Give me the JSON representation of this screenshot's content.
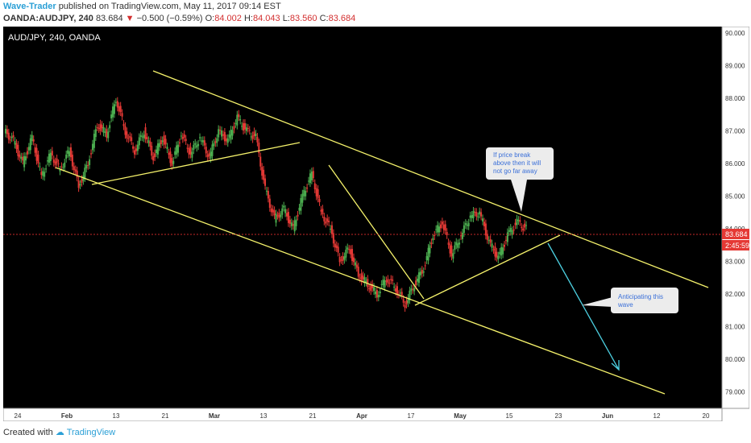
{
  "header": {
    "author": "Wave-Trader",
    "published_text": "published on TradingView.com, May 11, 2017 09:14 EST",
    "symbol": "OANDA:AUDJPY, 240",
    "last": "83.684",
    "change": "−0.500 (−0.59%)",
    "o_label": "O:",
    "o_value": "84.002",
    "h_label": "H:",
    "h_value": "84.043",
    "l_label": "L:",
    "l_value": "83.560",
    "c_label": "C:",
    "c_value": "83.684"
  },
  "footer": {
    "created_with": "Created with",
    "brand": "TradingView"
  },
  "chart_data": {
    "type": "line",
    "title": "AUD/JPY, 240, OANDA",
    "ylim": [
      78.5,
      90.2
    ],
    "y_ticks": [
      "90.000",
      "89.000",
      "88.000",
      "87.000",
      "86.000",
      "85.000",
      "84.000",
      "83.000",
      "82.000",
      "81.000",
      "80.000",
      "79.000"
    ],
    "x_ticks": [
      "24",
      "Feb",
      "13",
      "21",
      "Mar",
      "13",
      "21",
      "Apr",
      "17",
      "May",
      "15",
      "23",
      "Jun",
      "12",
      "20"
    ],
    "price_label": "83.684",
    "timer_label": "2:45:59",
    "price_path": [
      [
        0,
        87.0
      ],
      [
        1,
        86.7
      ],
      [
        2,
        86.0
      ],
      [
        3,
        86.8
      ],
      [
        4,
        85.6
      ],
      [
        5,
        86.3
      ],
      [
        6,
        85.8
      ],
      [
        7,
        86.4
      ],
      [
        8,
        85.3
      ],
      [
        9,
        86.0
      ],
      [
        10,
        87.2
      ],
      [
        11,
        86.9
      ],
      [
        12,
        88.0
      ],
      [
        13,
        87.0
      ],
      [
        14,
        86.4
      ],
      [
        15,
        87.0
      ],
      [
        16,
        86.2
      ],
      [
        17,
        86.8
      ],
      [
        18,
        86.0
      ],
      [
        19,
        86.9
      ],
      [
        20,
        86.3
      ],
      [
        21,
        86.8
      ],
      [
        22,
        86.2
      ],
      [
        23,
        87.0
      ],
      [
        24,
        86.7
      ],
      [
        25,
        87.4
      ],
      [
        26,
        87.0
      ],
      [
        27,
        86.8
      ],
      [
        28,
        85.2
      ],
      [
        29,
        84.3
      ],
      [
        30,
        84.6
      ],
      [
        31,
        84.0
      ],
      [
        32,
        85.0
      ],
      [
        33,
        85.7
      ],
      [
        34,
        84.5
      ],
      [
        35,
        84.0
      ],
      [
        36,
        83.0
      ],
      [
        37,
        83.4
      ],
      [
        38,
        82.6
      ],
      [
        39,
        82.3
      ],
      [
        40,
        82.0
      ],
      [
        41,
        82.5
      ],
      [
        42,
        82.2
      ],
      [
        43,
        81.7
      ],
      [
        44,
        82.3
      ],
      [
        45,
        82.8
      ],
      [
        46,
        83.8
      ],
      [
        47,
        84.2
      ],
      [
        48,
        83.2
      ],
      [
        49,
        83.8
      ],
      [
        50,
        84.4
      ],
      [
        51,
        84.5
      ],
      [
        52,
        83.6
      ],
      [
        53,
        83.1
      ],
      [
        54,
        83.8
      ],
      [
        55,
        84.2
      ],
      [
        56,
        84.0
      ]
    ],
    "annotations": [
      {
        "text_lines": [
          "If price break",
          "above then it will",
          "not go far away"
        ]
      },
      {
        "text_lines": [
          "Anticipating this",
          "wave"
        ]
      }
    ]
  }
}
